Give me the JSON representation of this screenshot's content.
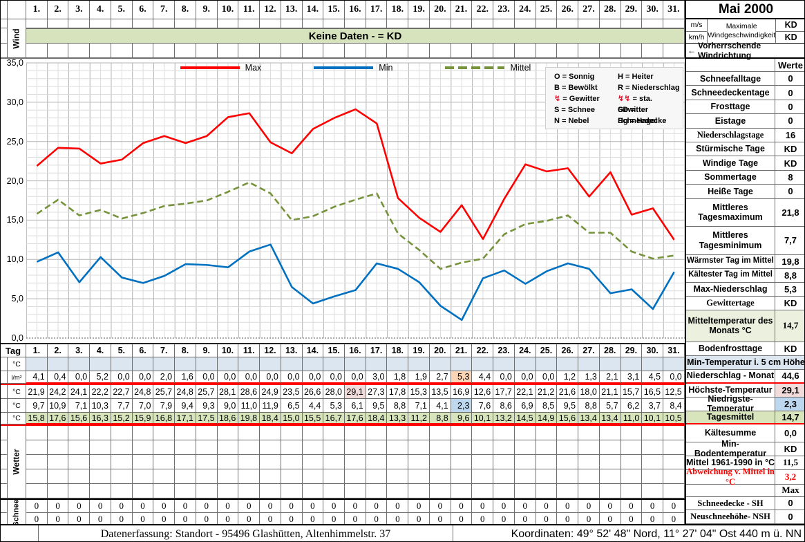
{
  "top": {
    "wind_label": "Wind",
    "banner": "Keine Daten -  = KD"
  },
  "days": [
    "1.",
    "2.",
    "3.",
    "4.",
    "5.",
    "6.",
    "7.",
    "8.",
    "9.",
    "10.",
    "11.",
    "12.",
    "13.",
    "14.",
    "15.",
    "16.",
    "17.",
    "18.",
    "19.",
    "20.",
    "21.",
    "22.",
    "23.",
    "24.",
    "25.",
    "26.",
    "27.",
    "28.",
    "29.",
    "30.",
    "31."
  ],
  "chart_data": {
    "type": "line",
    "title": "",
    "xlabel": "",
    "ylabel": "",
    "x": [
      1,
      2,
      3,
      4,
      5,
      6,
      7,
      8,
      9,
      10,
      11,
      12,
      13,
      14,
      15,
      16,
      17,
      18,
      19,
      20,
      21,
      22,
      23,
      24,
      25,
      26,
      27,
      28,
      29,
      30,
      31
    ],
    "ylim": [
      0,
      35
    ],
    "ytick_step": 5,
    "yticks": [
      "35,0",
      "30,0",
      "25,0",
      "20,0",
      "15,0",
      "10,0",
      "5,0",
      "0,0"
    ],
    "grid": "on",
    "legend_position": "top-center",
    "series": [
      {
        "name": "Max",
        "color": "#FF0000",
        "dash": false,
        "values": [
          21.9,
          24.2,
          24.1,
          22.2,
          22.7,
          24.8,
          25.7,
          24.8,
          25.7,
          28.1,
          28.6,
          24.9,
          23.5,
          26.6,
          28.0,
          29.1,
          27.3,
          17.8,
          15.3,
          13.5,
          16.9,
          12.6,
          17.7,
          22.1,
          21.2,
          21.6,
          18.0,
          21.1,
          15.7,
          16.5,
          12.5
        ]
      },
      {
        "name": "Min",
        "color": "#0070C0",
        "dash": false,
        "values": [
          9.7,
          10.9,
          7.1,
          10.3,
          7.7,
          7.0,
          7.9,
          9.4,
          9.3,
          9.0,
          11.0,
          11.9,
          6.5,
          4.4,
          5.3,
          6.1,
          9.5,
          8.8,
          7.1,
          4.1,
          2.3,
          7.6,
          8.6,
          6.9,
          8.5,
          9.5,
          8.8,
          5.7,
          6.2,
          3.7,
          8.4
        ]
      },
      {
        "name": "Mittel",
        "color": "#76933C",
        "dash": true,
        "values": [
          15.8,
          17.6,
          15.6,
          16.3,
          15.2,
          15.9,
          16.8,
          17.1,
          17.5,
          18.6,
          19.8,
          18.4,
          15.0,
          15.5,
          16.7,
          17.6,
          18.4,
          13.3,
          11.2,
          8.8,
          9.6,
          10.1,
          13.2,
          14.5,
          14.9,
          15.6,
          13.4,
          13.4,
          11.0,
          10.1,
          10.5
        ]
      }
    ]
  },
  "weather_codes": [
    {
      "left_sym": "O",
      "left": "= Sonnig",
      "left_red": false,
      "right_sym": "H",
      "right": "= Heiter",
      "right_red": false
    },
    {
      "left_sym": "B",
      "left": "= Bewölkt",
      "left_red": false,
      "right_sym": "R",
      "right": "= Niederschlag",
      "right_red": false
    },
    {
      "left_sym": "↯",
      "left": "= Gewitter",
      "left_red": true,
      "right_sym": "↯↯",
      "right": "= sta. Gewitter",
      "right_red": true
    },
    {
      "left_sym": "S",
      "left": "= Schnee",
      "left_red": false,
      "right_sym": "SD",
      "right": "= Schneedecke",
      "right_red": false
    },
    {
      "left_sym": "N",
      "left": "= Nebel",
      "left_red": false,
      "right_sym": "Hg",
      "right": "= Hagel",
      "right_red": false
    }
  ],
  "table": {
    "corner_label": "Tag",
    "wetter_label": "Wetter",
    "schnee_label": "Schnee",
    "rows": [
      {
        "name": "min-temp-5cm",
        "unit": "°C",
        "values": [
          "",
          "",
          "",
          "",
          "",
          "",
          "",
          "",
          "",
          "",
          "",
          "",
          "",
          "",
          "",
          "",
          "",
          "",
          "",
          "",
          "",
          "",
          "",
          "",
          "",
          "",
          "",
          "",
          "",
          "",
          ""
        ]
      },
      {
        "name": "niederschlag",
        "unit": "l/m²",
        "values": [
          "4,1",
          "0,4",
          "0,0",
          "5,2",
          "0,0",
          "0,0",
          "2,0",
          "1,6",
          "0,0",
          "0,0",
          "0,0",
          "0,0",
          "0,0",
          "0,0",
          "0,0",
          "0,0",
          "3,0",
          "1,8",
          "1,9",
          "2,7",
          "5,3",
          "4,4",
          "0,0",
          "0,0",
          "0,0",
          "1,2",
          "1,3",
          "2,1",
          "3,1",
          "4,5",
          "0,0"
        ]
      },
      {
        "name": "max-temp",
        "unit": "°C",
        "values": [
          "21,9",
          "24,2",
          "24,1",
          "22,2",
          "22,7",
          "24,8",
          "25,7",
          "24,8",
          "25,7",
          "28,1",
          "28,6",
          "24,9",
          "23,5",
          "26,6",
          "28,0",
          "29,1",
          "27,3",
          "17,8",
          "15,3",
          "13,5",
          "16,9",
          "12,6",
          "17,7",
          "22,1",
          "21,2",
          "21,6",
          "18,0",
          "21,1",
          "15,7",
          "16,5",
          "12,5"
        ]
      },
      {
        "name": "min-temp",
        "unit": "°C",
        "values": [
          "9,7",
          "10,9",
          "7,1",
          "10,3",
          "7,7",
          "7,0",
          "7,9",
          "9,4",
          "9,3",
          "9,0",
          "11,0",
          "11,9",
          "6,5",
          "4,4",
          "5,3",
          "6,1",
          "9,5",
          "8,8",
          "7,1",
          "4,1",
          "2,3",
          "7,6",
          "8,6",
          "6,9",
          "8,5",
          "9,5",
          "8,8",
          "5,7",
          "6,2",
          "3,7",
          "8,4"
        ]
      },
      {
        "name": "tagesmittel",
        "unit": "°C",
        "values": [
          "15,8",
          "17,6",
          "15,6",
          "16,3",
          "15,2",
          "15,9",
          "16,8",
          "17,1",
          "17,5",
          "18,6",
          "19,8",
          "18,4",
          "15,0",
          "15,5",
          "16,7",
          "17,6",
          "18,4",
          "13,3",
          "11,2",
          "8,8",
          "9,6",
          "10,1",
          "13,2",
          "14,5",
          "14,9",
          "15,6",
          "13,4",
          "13,4",
          "11,0",
          "10,1",
          "10,5"
        ]
      }
    ],
    "schnee_rows": [
      [
        "0",
        "0",
        "0",
        "0",
        "0",
        "0",
        "0",
        "0",
        "0",
        "0",
        "0",
        "0",
        "0",
        "0",
        "0",
        "0",
        "0",
        "0",
        "0",
        "0",
        "0",
        "0",
        "0",
        "0",
        "0",
        "0",
        "0",
        "0",
        "0",
        "0",
        "0"
      ],
      [
        "0",
        "0",
        "0",
        "0",
        "0",
        "0",
        "0",
        "0",
        "0",
        "0",
        "0",
        "0",
        "0",
        "0",
        "0",
        "0",
        "0",
        "0",
        "0",
        "0",
        "0",
        "0",
        "0",
        "0",
        "0",
        "0",
        "0",
        "0",
        "0",
        "0",
        "0"
      ]
    ]
  },
  "sidebar": {
    "title": "Mai 2000",
    "wind_units": [
      "m/s",
      "km/h"
    ],
    "wind_label": "Maximale Windgeschwindigkeit",
    "wind_values": [
      "KD",
      "KD"
    ],
    "direction_arrow": "←",
    "direction": "Vorherrschende Windrichtung",
    "werte_header": "Werte",
    "rows": [
      {
        "label": "Schneefalltage",
        "value": "0"
      },
      {
        "label": "Schneedeckentage",
        "value": "0"
      },
      {
        "label": "Frosttage",
        "value": "0"
      },
      {
        "label": "Eistage",
        "value": "0"
      },
      {
        "label": "Niederschlagstage",
        "value": "16"
      },
      {
        "label": "Stürmische Tage",
        "value": "KD"
      },
      {
        "label": "Windige Tage",
        "value": "KD"
      },
      {
        "label": "Sommertage",
        "value": "8"
      },
      {
        "label": "Heiße Tage",
        "value": "0"
      },
      {
        "label": "Mittleres Tagesmaximum",
        "value": "21,8"
      },
      {
        "label": "Mittleres Tagesminimum",
        "value": "7,7"
      },
      {
        "label": "Wärmster Tag im Mittel",
        "value": "19,8"
      },
      {
        "label": "Kältester Tag im Mittel",
        "value": "8,8"
      },
      {
        "label": "Max-Niederschlag",
        "value": "5,3"
      },
      {
        "label": "Gewittertage",
        "value": "KD"
      },
      {
        "label": "Mitteltemperatur des Monats °C",
        "value": "14,7"
      },
      {
        "label": "Bodenfrosttage",
        "value": "KD"
      },
      {
        "label": "Min-Temperatur i. 5 cm Höhe",
        "value": null
      },
      {
        "label": "Niederschlag - Monat",
        "value": "44,6"
      },
      {
        "label": "Höchste-Temperatur",
        "value": "29,1"
      },
      {
        "label": "Niedrigste-Temperatur",
        "value": "2,3"
      },
      {
        "label": "Tagesmittel",
        "value": "14,7"
      },
      {
        "label": "Kältesumme",
        "value": "0,0"
      },
      {
        "label": "Min-Bodentemperatur",
        "value": "KD"
      },
      {
        "label": "Mittel 1961-1990 in °C",
        "value": "11,5"
      },
      {
        "label": "Abweichung v. Mittel in °C",
        "value": "3,2"
      },
      {
        "label": "",
        "value": "Max"
      },
      {
        "label": "Schneedecke -   SH",
        "value": "0"
      },
      {
        "label": "Neuschneehöhe- NSH",
        "value": "0"
      }
    ]
  },
  "footer": {
    "left": "Datenerfassung:  Standort -  95496  Glashütten, Altenhimmelstr. 37",
    "right": "Koordinaten:  49° 52' 48\" Nord,   11° 27' 04\" Ost  440 m ü. NN"
  }
}
